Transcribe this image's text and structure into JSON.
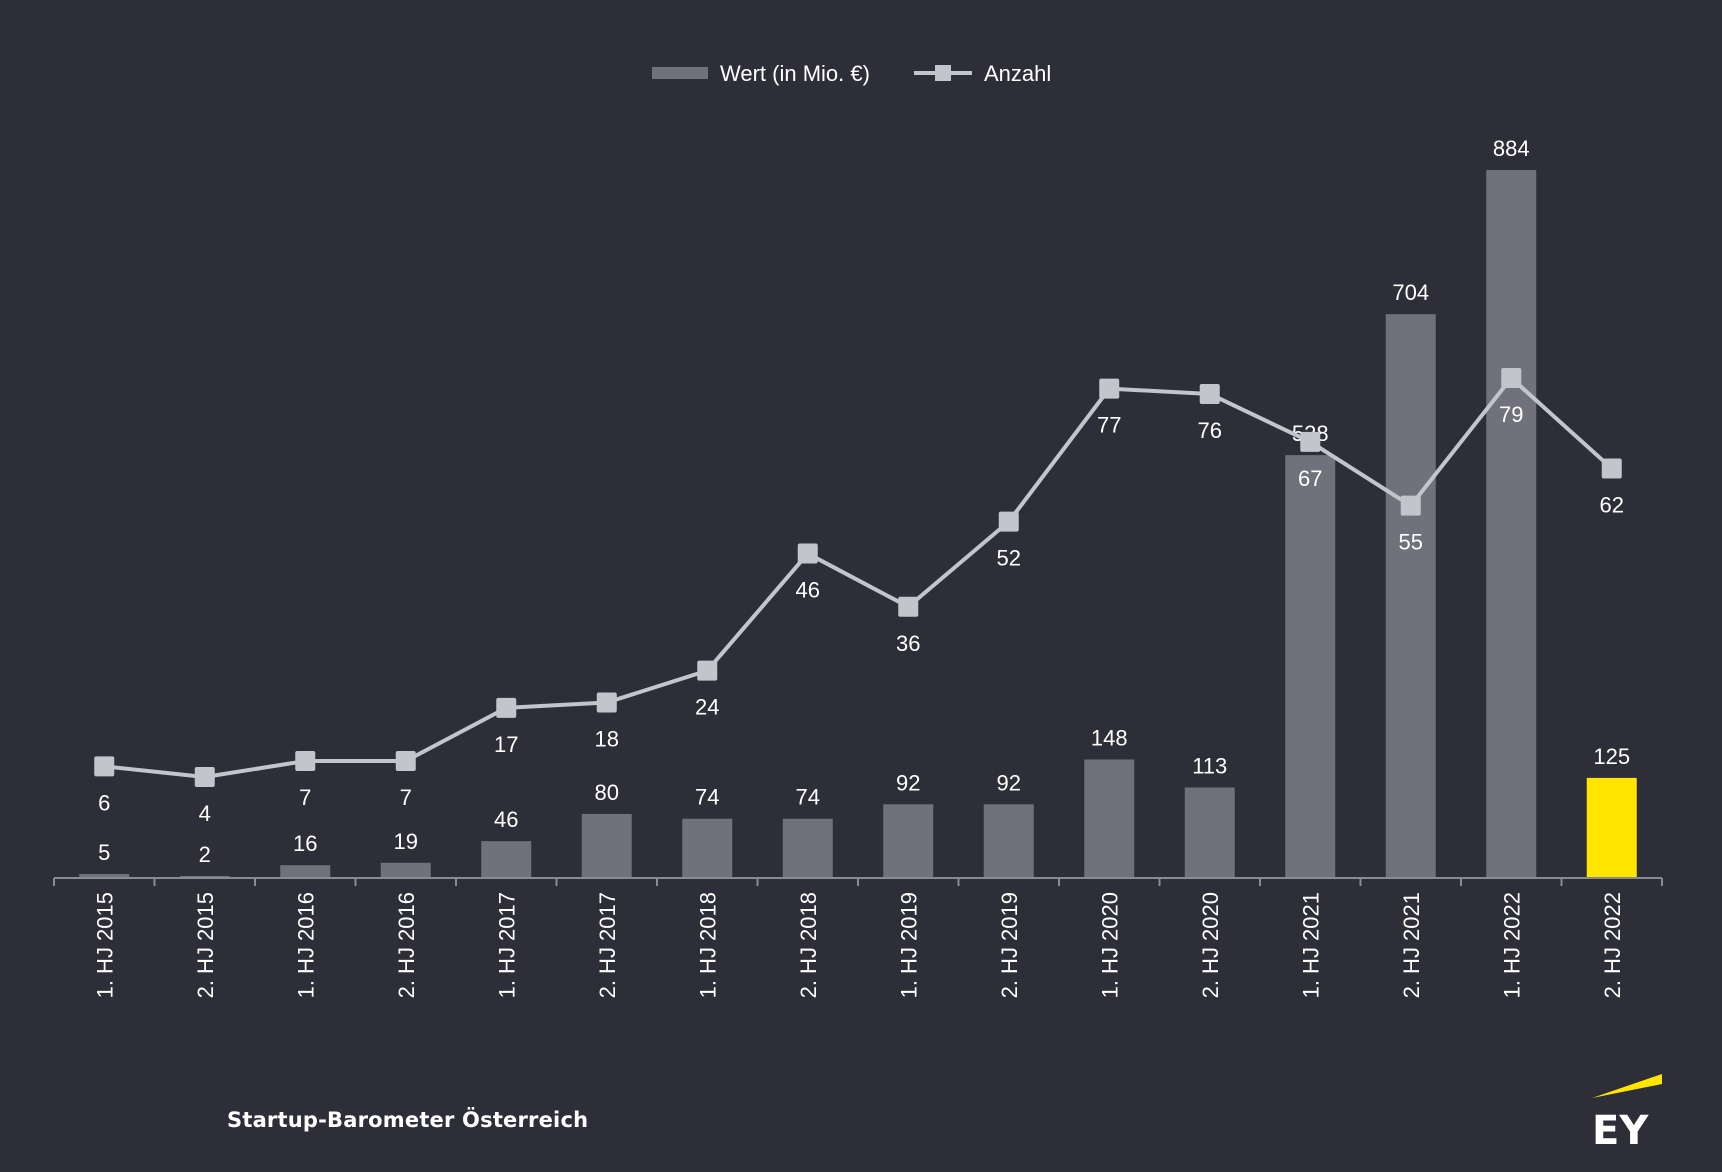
{
  "chart_data": {
    "type": "bar",
    "categories": [
      "1. HJ 2015",
      "2. HJ 2015",
      "1. HJ 2016",
      "2. HJ 2016",
      "1. HJ 2017",
      "2. HJ 2017",
      "1. HJ 2018",
      "2. HJ 2018",
      "1. HJ 2019",
      "2. HJ 2019",
      "1. HJ 2020",
      "2. HJ 2020",
      "1. HJ 2021",
      "2. HJ 2021",
      "1. HJ 2022",
      "2. HJ 2022"
    ],
    "series": [
      {
        "name": "Wert (in Mio. €)",
        "type": "bar",
        "values": [
          5,
          2,
          16,
          19,
          46,
          80,
          74,
          74,
          92,
          92,
          148,
          113,
          528,
          704,
          884,
          125
        ],
        "color": "#71717b",
        "highlight_color": "#ffe600",
        "highlight_index": 15
      },
      {
        "name": "Anzahl",
        "type": "line",
        "values": [
          6,
          4,
          7,
          7,
          17,
          18,
          24,
          46,
          36,
          52,
          77,
          76,
          67,
          55,
          79,
          62
        ],
        "color": "#c4c4cd"
      }
    ],
    "legend_position": "top-center",
    "grid": false,
    "ylim_bars": [
      0,
      884
    ],
    "ylim_line": [
      0,
      79
    ]
  },
  "footer": {
    "source": "Startup-Barometer Österreich"
  },
  "logo": {
    "text": "EY",
    "accent_color": "#ffe600"
  }
}
